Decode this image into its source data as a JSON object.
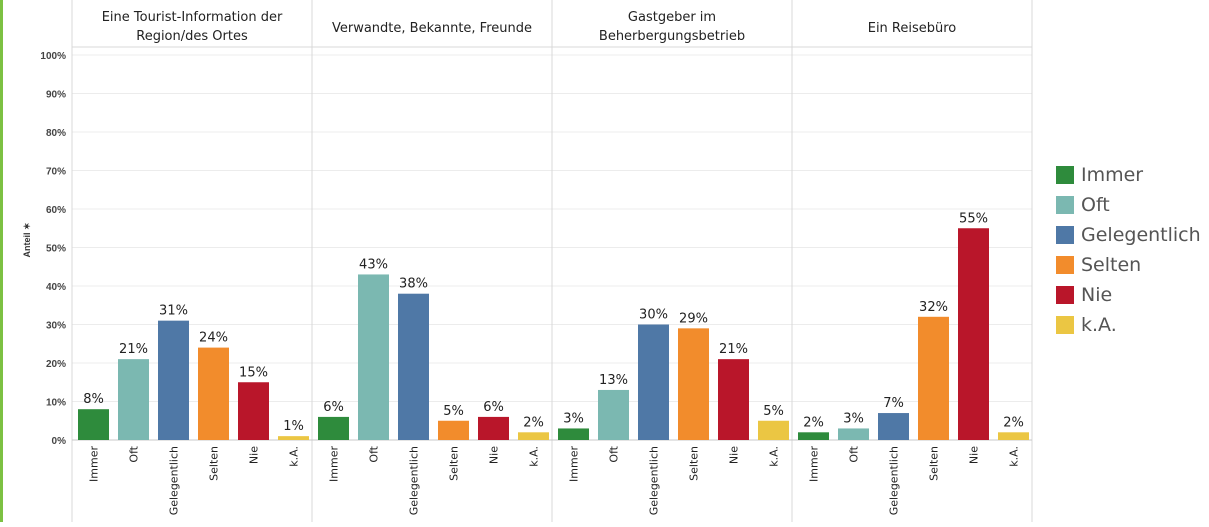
{
  "chart_data": {
    "type": "bar",
    "ylabel": "Anteil",
    "ylim": [
      0,
      100
    ],
    "yticks": [
      "0%",
      "10%",
      "20%",
      "30%",
      "40%",
      "50%",
      "60%",
      "70%",
      "80%",
      "90%",
      "100%"
    ],
    "grid": true,
    "legend_position": "right",
    "categories": [
      "Immer",
      "Oft",
      "Gelegentlich",
      "Selten",
      "Nie",
      "k.A."
    ],
    "colors": [
      "#2e8b3c",
      "#7bb8b1",
      "#4f78a6",
      "#f28c2c",
      "#b9162a",
      "#ebc643"
    ],
    "panels": [
      {
        "title": "Eine Tourist-Information der Region/des Ortes",
        "values": [
          8,
          21,
          31,
          24,
          15,
          1
        ],
        "labels": [
          "8%",
          "21%",
          "31%",
          "24%",
          "15%",
          "1%"
        ]
      },
      {
        "title": "Verwandte, Bekannte, Freunde",
        "values": [
          6,
          43,
          38,
          5,
          6,
          2
        ],
        "labels": [
          "6%",
          "43%",
          "38%",
          "5%",
          "6%",
          "2%"
        ]
      },
      {
        "title": "Gastgeber im Beherbergungsbetrieb",
        "values": [
          3,
          13,
          30,
          29,
          21,
          5
        ],
        "labels": [
          "3%",
          "13%",
          "30%",
          "29%",
          "21%",
          "5%"
        ]
      },
      {
        "title": "Ein Reisebüro",
        "values": [
          2,
          3,
          7,
          32,
          55,
          2
        ],
        "labels": [
          "2%",
          "3%",
          "7%",
          "32%",
          "55%",
          "2%"
        ]
      }
    ]
  },
  "title_lines": [
    [
      "Eine Tourist-Information der",
      "Region/des Ortes"
    ],
    [
      "Verwandte, Bekannte, Freunde"
    ],
    [
      "Gastgeber im",
      "Beherbergungsbetrieb"
    ],
    [
      "Ein Reisebüro"
    ]
  ],
  "legend": [
    "Immer",
    "Oft",
    "Gelegentlich",
    "Selten",
    "Nie",
    "k.A."
  ],
  "accent_bar_color": "#7cc142"
}
